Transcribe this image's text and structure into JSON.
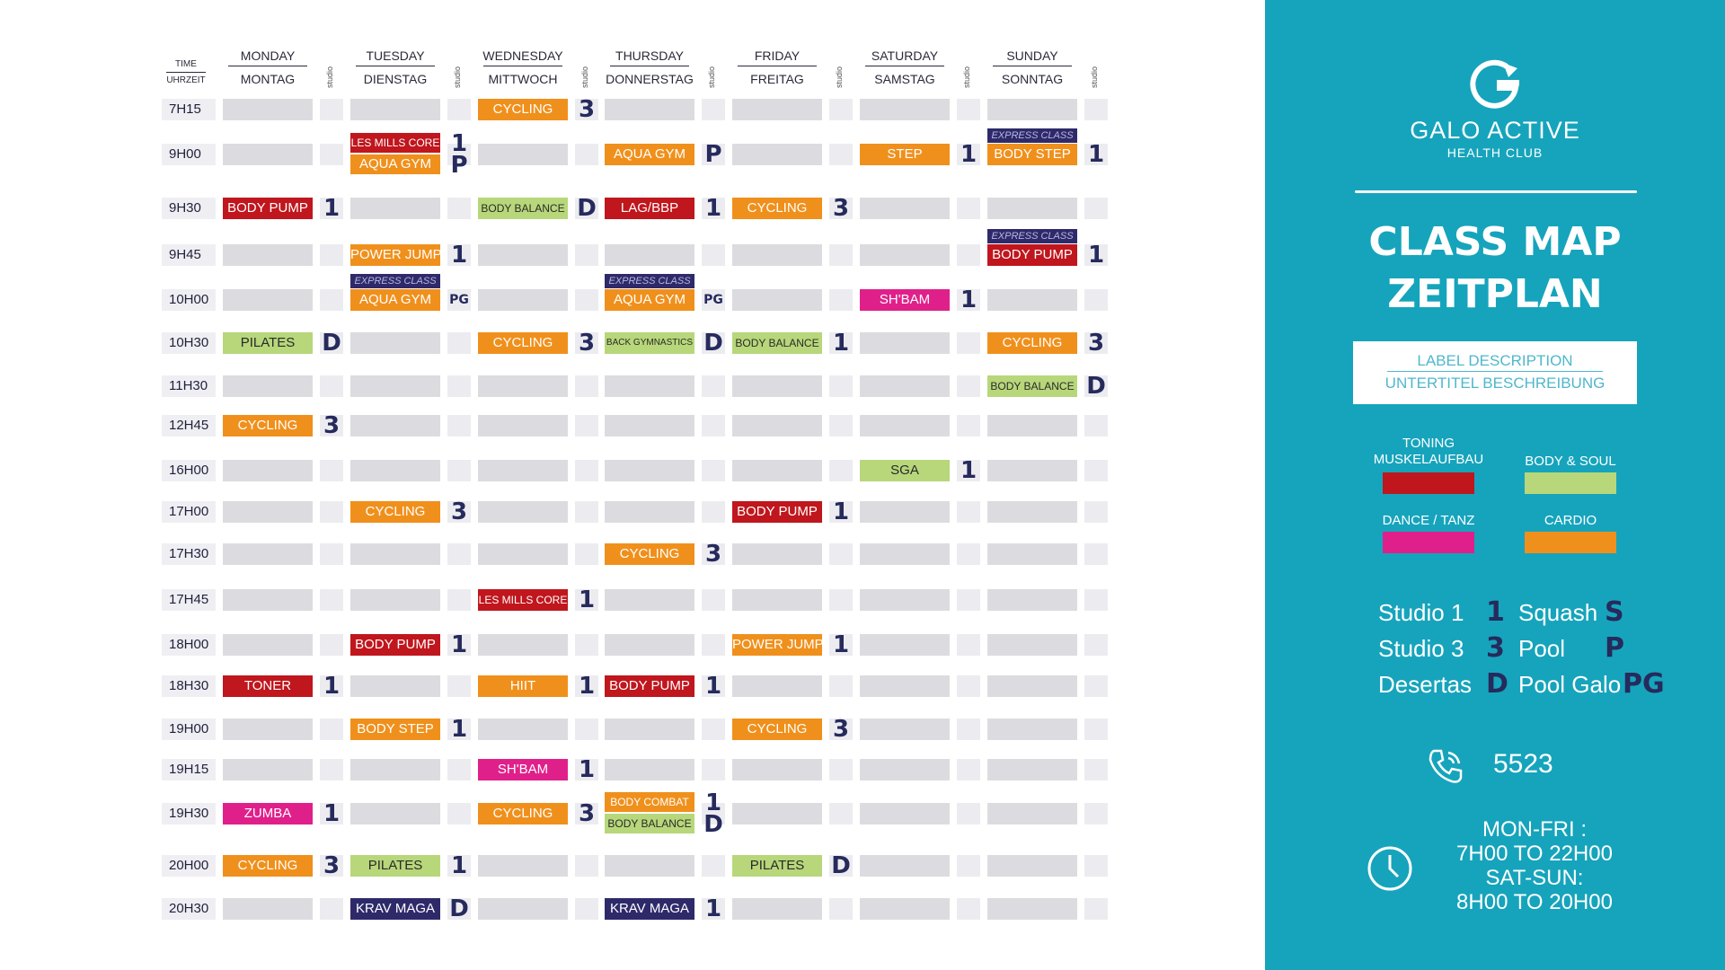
{
  "colors": {
    "toning": "#c0161d",
    "body_soul": "#b7d77a",
    "dance": "#e0208a",
    "cardio": "#f0901c",
    "express": "#2e2a6a",
    "krav": "#2e2a6a",
    "accent_panel": "#16a4bc",
    "studio_mark": "#262a5c"
  },
  "headers": {
    "time": {
      "en": "TIME",
      "de": "UHRZEIT"
    },
    "studio_label": "studio",
    "days": [
      {
        "en": "MONDAY",
        "de": "MONTAG"
      },
      {
        "en": "TUESDAY",
        "de": "DIENSTAG"
      },
      {
        "en": "WEDNESDAY",
        "de": "MITTWOCH"
      },
      {
        "en": "THURSDAY",
        "de": "DONNERSTAG"
      },
      {
        "en": "FRIDAY",
        "de": "FREITAG"
      },
      {
        "en": "SATURDAY",
        "de": "SAMSTAG"
      },
      {
        "en": "SUNDAY",
        "de": "SONNTAG"
      }
    ]
  },
  "express_label": "EXPRESS CLASS",
  "rows": [
    {
      "time": "7H15",
      "classes": [
        null,
        null,
        {
          "name": "CYCLING",
          "type": "cardio",
          "studio": "3"
        },
        null,
        null,
        null,
        null
      ]
    },
    {
      "time": "9H00",
      "classes": [
        null,
        {
          "name": "LES MILLS CORE",
          "type": "toning",
          "studio": "1",
          "size": "small",
          "second": {
            "name": "AQUA GYM",
            "type": "cardio",
            "studio": "P"
          }
        },
        null,
        {
          "name": "AQUA GYM",
          "type": "cardio",
          "studio": "P"
        },
        null,
        {
          "name": "STEP",
          "type": "cardio",
          "studio": "1"
        },
        {
          "name": "BODY STEP",
          "type": "cardio",
          "studio": "1",
          "express": true
        }
      ]
    },
    {
      "time": "9H30",
      "classes": [
        {
          "name": "BODY PUMP",
          "type": "toning",
          "studio": "1"
        },
        null,
        {
          "name": "BODY BALANCE",
          "type": "body_soul",
          "studio": "D",
          "size": "small"
        },
        {
          "name": "LAG/BBP",
          "type": "toning",
          "studio": "1"
        },
        {
          "name": "CYCLING",
          "type": "cardio",
          "studio": "3"
        },
        null,
        null
      ]
    },
    {
      "time": "9H45",
      "classes": [
        null,
        {
          "name": "POWER JUMP",
          "type": "cardio",
          "studio": "1"
        },
        null,
        null,
        null,
        null,
        {
          "name": "BODY PUMP",
          "type": "toning",
          "studio": "1",
          "express": true
        }
      ]
    },
    {
      "time": "10H00",
      "classes": [
        null,
        {
          "name": "AQUA GYM",
          "type": "cardio",
          "studio": "PG",
          "express": true
        },
        null,
        {
          "name": "AQUA GYM",
          "type": "cardio",
          "studio": "PG",
          "express": true
        },
        null,
        {
          "name": "SH'BAM",
          "type": "dance",
          "studio": "1"
        },
        null
      ]
    },
    {
      "time": "10H30",
      "classes": [
        {
          "name": "PILATES",
          "type": "body_soul",
          "studio": "D"
        },
        null,
        {
          "name": "CYCLING",
          "type": "cardio",
          "studio": "3"
        },
        {
          "name": "BACK GYMNASTICS",
          "type": "body_soul",
          "studio": "D",
          "size": "tiny"
        },
        {
          "name": "BODY BALANCE",
          "type": "body_soul",
          "studio": "1",
          "size": "small"
        },
        null,
        {
          "name": "CYCLING",
          "type": "cardio",
          "studio": "3"
        }
      ]
    },
    {
      "time": "11H30",
      "classes": [
        null,
        null,
        null,
        null,
        null,
        null,
        {
          "name": "BODY BALANCE",
          "type": "body_soul",
          "studio": "D",
          "size": "small"
        }
      ]
    },
    {
      "time": "12H45",
      "classes": [
        {
          "name": "CYCLING",
          "type": "cardio",
          "studio": "3"
        },
        null,
        null,
        null,
        null,
        null,
        null
      ]
    },
    {
      "time": "16H00",
      "classes": [
        null,
        null,
        null,
        null,
        null,
        {
          "name": "SGA",
          "type": "body_soul",
          "studio": "1"
        },
        null
      ]
    },
    {
      "time": "17H00",
      "classes": [
        null,
        {
          "name": "CYCLING",
          "type": "cardio",
          "studio": "3"
        },
        null,
        null,
        {
          "name": "BODY PUMP",
          "type": "toning",
          "studio": "1"
        },
        null,
        null
      ]
    },
    {
      "time": "17H30",
      "classes": [
        null,
        null,
        null,
        {
          "name": "CYCLING",
          "type": "cardio",
          "studio": "3"
        },
        null,
        null,
        null
      ]
    },
    {
      "time": "17H45",
      "classes": [
        null,
        null,
        {
          "name": "LES MILLS CORE",
          "type": "toning",
          "studio": "1",
          "size": "small"
        },
        null,
        null,
        null,
        null
      ]
    },
    {
      "time": "18H00",
      "classes": [
        null,
        {
          "name": "BODY PUMP",
          "type": "toning",
          "studio": "1"
        },
        null,
        null,
        {
          "name": "POWER JUMP",
          "type": "cardio",
          "studio": "1"
        },
        null,
        null
      ]
    },
    {
      "time": "18H30",
      "classes": [
        {
          "name": "TONER",
          "type": "toning",
          "studio": "1"
        },
        null,
        {
          "name": "HIIT",
          "type": "cardio",
          "studio": "1"
        },
        {
          "name": "BODY PUMP",
          "type": "toning",
          "studio": "1"
        },
        null,
        null,
        null
      ]
    },
    {
      "time": "19H00",
      "classes": [
        null,
        {
          "name": "BODY STEP",
          "type": "cardio",
          "studio": "1"
        },
        null,
        null,
        {
          "name": "CYCLING",
          "type": "cardio",
          "studio": "3"
        },
        null,
        null
      ]
    },
    {
      "time": "19H15",
      "classes": [
        null,
        null,
        {
          "name": "SH'BAM",
          "type": "dance",
          "studio": "1"
        },
        null,
        null,
        null,
        null
      ]
    },
    {
      "time": "19H30",
      "classes": [
        {
          "name": "ZUMBA",
          "type": "dance",
          "studio": "1"
        },
        null,
        {
          "name": "CYCLING",
          "type": "cardio",
          "studio": "3"
        },
        {
          "name": "BODY COMBAT",
          "type": "cardio",
          "studio": "1",
          "size": "small",
          "second": {
            "name": "BODY BALANCE",
            "type": "body_soul",
            "studio": "D",
            "size": "small"
          }
        },
        null,
        null,
        null
      ]
    },
    {
      "time": "20H00",
      "classes": [
        {
          "name": "CYCLING",
          "type": "cardio",
          "studio": "3"
        },
        {
          "name": "PILATES",
          "type": "body_soul",
          "studio": "1"
        },
        null,
        null,
        {
          "name": "PILATES",
          "type": "body_soul",
          "studio": "D"
        },
        null,
        null
      ]
    },
    {
      "time": "20H30",
      "classes": [
        null,
        {
          "name": "KRAV MAGA",
          "type": "krav",
          "studio": "D"
        },
        null,
        {
          "name": "KRAV MAGA",
          "type": "krav",
          "studio": "1"
        },
        null,
        null,
        null
      ]
    }
  ],
  "sidebar": {
    "brand_name": "GALO ACTIVE",
    "brand_sub": "HEALTH CLUB",
    "title_line1": "CLASS MAP",
    "title_line2": "ZEITPLAN",
    "label_description": "LABEL DESCRIPTION",
    "label_description_de": "UNTERTITEL BESCHREIBUNG",
    "legend": [
      {
        "label": "TONING\nMUSKELAUFBAU",
        "color": "toning"
      },
      {
        "label": "BODY & SOUL",
        "color": "body_soul"
      },
      {
        "label": "DANCE / TANZ",
        "color": "dance"
      },
      {
        "label": "CARDIO",
        "color": "cardio"
      }
    ],
    "locations": [
      {
        "name": "Studio 1",
        "code": "1"
      },
      {
        "name": "Squash",
        "code": "S"
      },
      {
        "name": "Studio 3",
        "code": "3"
      },
      {
        "name": "Pool",
        "code": "P"
      },
      {
        "name": "Desertas",
        "code": "D"
      },
      {
        "name": "Pool Galo",
        "code": "PG"
      }
    ],
    "phone": "5523",
    "hours_line1": "MON-FRI :",
    "hours_line2": "7H00 TO 22H00",
    "hours_line3": "SAT-SUN:",
    "hours_line4": "8H00 TO 20H00"
  }
}
